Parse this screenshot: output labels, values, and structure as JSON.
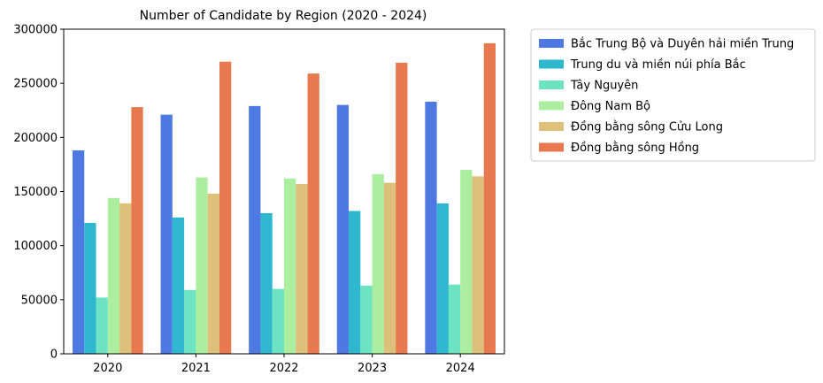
{
  "chart_data": {
    "type": "bar",
    "title": "Number of Candidate by Region  (2020 - 2024)",
    "xlabel": "",
    "ylabel": "",
    "categories": [
      "2020",
      "2021",
      "2022",
      "2023",
      "2024"
    ],
    "ylim": [
      0,
      300000
    ],
    "yticks": [
      0,
      50000,
      100000,
      150000,
      200000,
      250000,
      300000
    ],
    "ytick_labels": [
      "0",
      "50000",
      "100000",
      "150000",
      "200000",
      "250000",
      "300000"
    ],
    "grid": false,
    "legend_position": "outside right, top",
    "series": [
      {
        "name": "Bắc Trung Bộ và Duyên hải miền Trung",
        "color": "#4f79e2",
        "values": [
          188000,
          221000,
          229000,
          230000,
          233000
        ]
      },
      {
        "name": "Trung du và miền núi phía Bắc",
        "color": "#2fb7cf",
        "values": [
          121000,
          126000,
          130000,
          132000,
          139000
        ]
      },
      {
        "name": "Tây Nguyên",
        "color": "#6ce3c1",
        "values": [
          52000,
          59000,
          60000,
          63000,
          64000
        ]
      },
      {
        "name": "Đông Nam Bộ",
        "color": "#abeea0",
        "values": [
          144000,
          163000,
          162000,
          166000,
          170000
        ]
      },
      {
        "name": "Đồng bằng sông Cửu Long",
        "color": "#dfc07a",
        "values": [
          139000,
          148000,
          157000,
          158000,
          164000
        ]
      },
      {
        "name": "Đồng bằng sông Hồng",
        "color": "#e8794f",
        "values": [
          228000,
          270000,
          259000,
          269000,
          287000
        ]
      }
    ]
  }
}
